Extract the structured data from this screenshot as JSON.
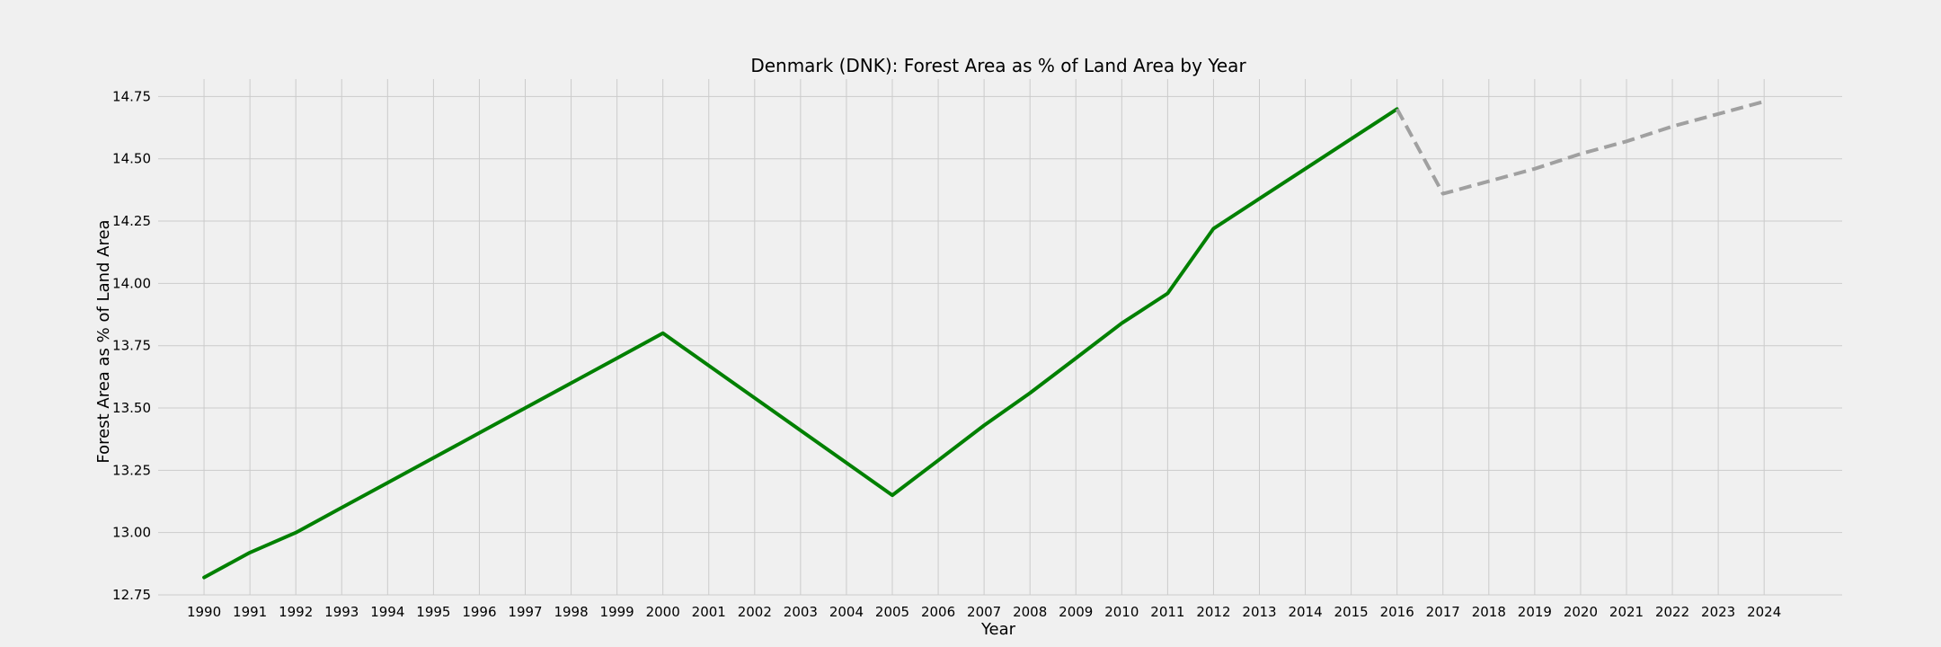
{
  "chart_data": {
    "type": "line",
    "title": "Denmark (DNK): Forest Area as % of Land Area by Year",
    "xlabel": "Year",
    "ylabel": "Forest Area as % of Land Area",
    "x_ticks": [
      "1990",
      "1991",
      "1992",
      "1993",
      "1994",
      "1995",
      "1996",
      "1997",
      "1998",
      "1999",
      "2000",
      "2001",
      "2002",
      "2003",
      "2004",
      "2005",
      "2006",
      "2007",
      "2008",
      "2009",
      "2010",
      "2011",
      "2012",
      "2013",
      "2014",
      "2015",
      "2016",
      "2017",
      "2018",
      "2019",
      "2020",
      "2021",
      "2022",
      "2023",
      "2024"
    ],
    "y_ticks": [
      "12.75",
      "13.00",
      "13.25",
      "13.50",
      "13.75",
      "14.00",
      "14.25",
      "14.50",
      "14.75"
    ],
    "xlim": [
      1989,
      2025.7
    ],
    "ylim": [
      12.75,
      14.82
    ],
    "grid": true,
    "series": [
      {
        "style": "solid",
        "color": "#008000",
        "x": [
          1990,
          1991,
          1992,
          1993,
          1994,
          1995,
          1996,
          1997,
          1998,
          1999,
          2000,
          2001,
          2002,
          2003,
          2004,
          2005,
          2006,
          2007,
          2008,
          2009,
          2010,
          2011,
          2012,
          2013,
          2014,
          2015,
          2016
        ],
        "y": [
          12.82,
          12.92,
          13.0,
          13.1,
          13.2,
          13.3,
          13.4,
          13.5,
          13.6,
          13.7,
          13.8,
          13.67,
          13.54,
          13.41,
          13.28,
          13.15,
          13.29,
          13.43,
          13.56,
          13.7,
          13.84,
          13.96,
          14.22,
          14.34,
          14.46,
          14.58,
          14.7
        ]
      },
      {
        "style": "dashed",
        "color": "#a0a0a0",
        "x": [
          2016,
          2017,
          2018,
          2019,
          2020,
          2021,
          2022,
          2023,
          2024
        ],
        "y": [
          14.7,
          14.36,
          14.41,
          14.46,
          14.52,
          14.57,
          14.63,
          14.68,
          14.73
        ]
      }
    ]
  }
}
